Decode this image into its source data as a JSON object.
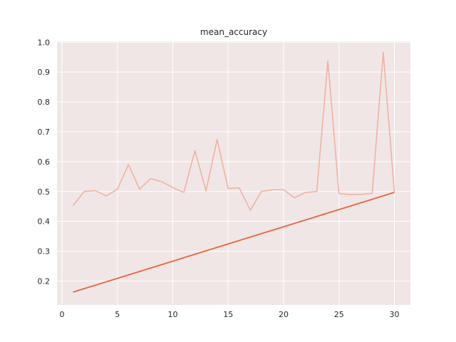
{
  "chart_data": {
    "type": "line",
    "title": "mean_accuracy",
    "xlabel": "",
    "ylabel": "",
    "xlim": [
      -0.45,
      31.45
    ],
    "ylim": [
      0.12,
      1.003
    ],
    "x_ticks": [
      0,
      5,
      10,
      15,
      20,
      25,
      30
    ],
    "y_ticks": [
      0.2,
      0.3,
      0.4,
      0.5,
      0.6,
      0.7,
      0.8,
      0.9,
      1.0
    ],
    "y_tick_labels": [
      "0.2",
      "0.3",
      "0.4",
      "0.5",
      "0.6",
      "0.7",
      "0.8",
      "0.9",
      "1.0"
    ],
    "grid": true,
    "background_color": "#f0e6e6",
    "grid_color": "#ffffff",
    "series": [
      {
        "color": "#f0b3a0",
        "x": [
          1,
          2,
          3,
          4,
          5,
          6,
          7,
          8,
          9,
          10,
          11,
          12,
          13,
          14,
          15,
          16,
          17,
          18,
          19,
          20,
          21,
          22,
          23,
          24,
          25,
          26,
          27,
          28,
          29,
          30
        ],
        "values": [
          0.453,
          0.5,
          0.503,
          0.485,
          0.508,
          0.59,
          0.508,
          0.543,
          0.533,
          0.513,
          0.497,
          0.637,
          0.502,
          0.674,
          0.51,
          0.512,
          0.437,
          0.5,
          0.506,
          0.506,
          0.479,
          0.497,
          0.5,
          0.938,
          0.493,
          0.49,
          0.49,
          0.494,
          0.966,
          0.497
        ]
      },
      {
        "color": "#e8633a",
        "x": [
          1,
          30
        ],
        "values": [
          0.163,
          0.497
        ]
      }
    ]
  }
}
